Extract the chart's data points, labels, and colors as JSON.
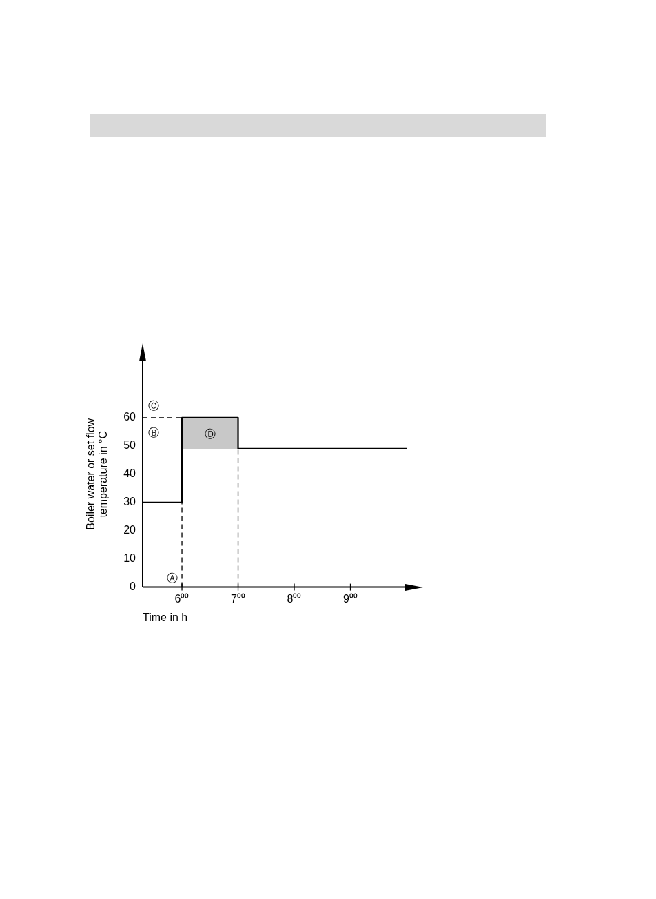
{
  "chart_data": {
    "type": "step",
    "xlabel": "Time in h",
    "ylabel": "Boiler water or set flow temperature in °C",
    "xlim": [
      5.3,
      10
    ],
    "xticks": [
      {
        "value": 6,
        "label": "6⁰⁰"
      },
      {
        "value": 7,
        "label": "7⁰⁰"
      },
      {
        "value": 8,
        "label": "8⁰⁰"
      },
      {
        "value": 9,
        "label": "9⁰⁰"
      }
    ],
    "ylim": [
      0,
      80
    ],
    "yticks": [
      0,
      10,
      20,
      30,
      40,
      50,
      60
    ],
    "series": [
      {
        "color": "#000000",
        "x": [
          5.3,
          6,
          7,
          10
        ],
        "values": [
          30,
          60,
          49,
          49
        ]
      }
    ],
    "bands": [
      {
        "axis": "x",
        "from": 6,
        "to": 7,
        "label": "Ⓓ",
        "color": "#c8c8c8"
      }
    ],
    "ref_lines": [
      {
        "axis": "y",
        "value": 60,
        "line_style": "dashed",
        "label": "Ⓒ"
      },
      {
        "axis": "x",
        "value": 6,
        "line_style": "dashed",
        "label": "Ⓐ"
      },
      {
        "axis": "x",
        "value": 7,
        "line_style": "dashed"
      }
    ],
    "annotations": [
      "Ⓑ"
    ],
    "grid": false,
    "legend": false,
    "marker": "none",
    "line_style": "solid"
  }
}
